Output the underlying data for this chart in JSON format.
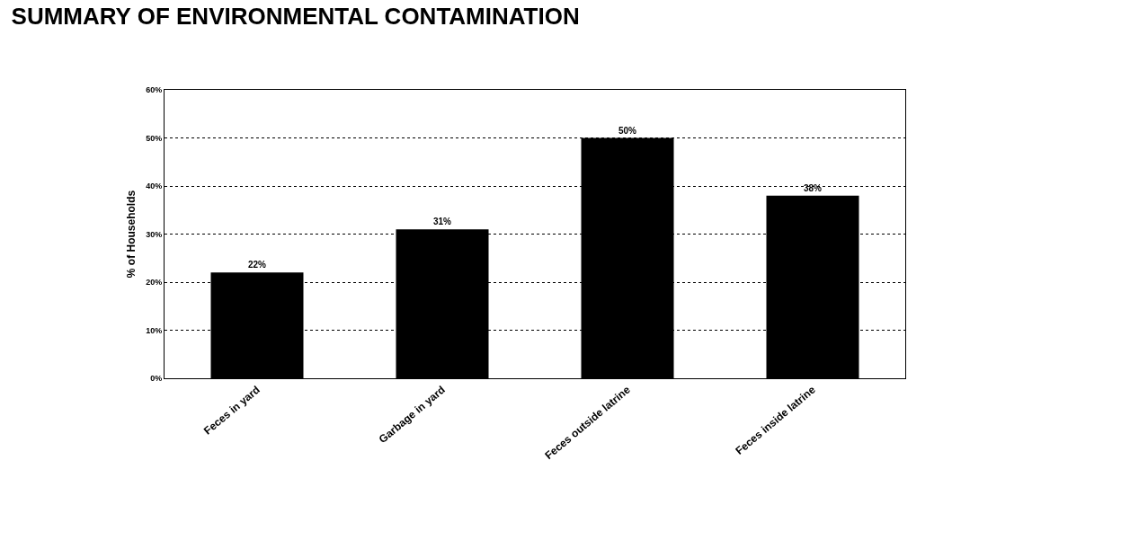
{
  "chart_data": {
    "type": "bar",
    "title": "SUMMARY OF ENVIRONMENTAL CONTAMINATION",
    "ylabel": "% of Households",
    "categories": [
      "Feces in yard",
      "Garbage in yard",
      "Feces outside latrine",
      "Feces inside latrine"
    ],
    "values": [
      22,
      31,
      50,
      38
    ],
    "color": "#000000",
    "value_labels": [
      "22%",
      "31%",
      "50%",
      "38%"
    ],
    "ylim": [
      0,
      60
    ],
    "yticks": [
      {
        "value": 0,
        "label": "0%"
      },
      {
        "value": 10,
        "label": "10%"
      },
      {
        "value": 20,
        "label": "20%"
      },
      {
        "value": 30,
        "label": "30%"
      },
      {
        "value": 40,
        "label": "40%"
      },
      {
        "value": 50,
        "label": "50%"
      },
      {
        "value": 60,
        "label": "60%"
      }
    ],
    "grid": "y",
    "legend": false
  }
}
